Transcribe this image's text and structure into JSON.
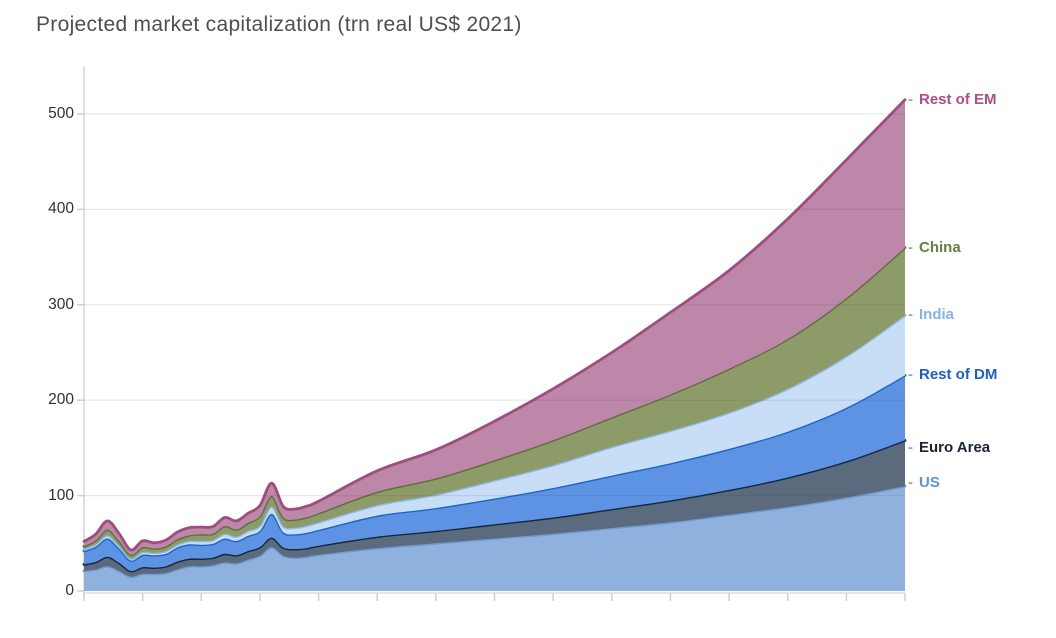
{
  "title": "Projected market capitalization (trn real US$ 2021)",
  "chart_data": {
    "type": "area",
    "stacked": true,
    "title": "Projected market capitalization (trn real US$ 2021)",
    "unit": "trn real US$ 2021",
    "xlabel": "",
    "ylabel": "",
    "ylim": [
      0,
      500
    ],
    "yticks": [
      0,
      100,
      200,
      300,
      400,
      500
    ],
    "ytick_labels": [
      "0",
      "100",
      "200",
      "300",
      "400",
      "500"
    ],
    "grid": "horizontal",
    "x_range_years": [
      2005,
      2075
    ],
    "x_tick_every_years": 5,
    "x_tick_labels_visible": false,
    "legend_position": "right-edge-labels",
    "x": [
      2005,
      2006,
      2007,
      2008,
      2009,
      2010,
      2011,
      2012,
      2013,
      2014,
      2015,
      2016,
      2017,
      2018,
      2019,
      2020,
      2021,
      2022,
      2023,
      2024,
      2025,
      2030,
      2035,
      2040,
      2045,
      2050,
      2055,
      2060,
      2065,
      2070,
      2075
    ],
    "series": [
      {
        "name": "US",
        "label": "US",
        "fill": "#8fb1de",
        "stroke": "#6d9bd3",
        "label_color": "#5f92dc",
        "values": [
          21,
          22.5,
          26,
          21,
          15,
          18,
          18,
          19,
          23,
          26,
          26,
          27,
          30,
          29,
          33,
          37,
          46,
          37,
          35,
          36,
          38,
          45,
          50,
          55,
          60,
          66,
          72,
          80,
          88,
          98,
          110
        ]
      },
      {
        "name": "Euro Area",
        "label": "Euro Area",
        "fill": "#5b6a7d",
        "stroke": "#16273c",
        "label_color": "#17233a",
        "values": [
          7,
          8,
          10,
          8.5,
          6,
          7,
          6.5,
          7,
          8,
          8,
          8,
          8,
          9,
          8.5,
          9,
          9,
          10,
          8.5,
          9,
          9,
          9.5,
          12,
          13,
          15,
          17,
          20,
          23,
          26,
          31,
          38,
          48
        ]
      },
      {
        "name": "Rest of DM",
        "label": "Rest of DM",
        "fill": "#5e92e2",
        "stroke": "#1a66cc",
        "label_color": "#1d5fc8",
        "values": [
          14,
          16,
          19,
          15,
          11,
          13,
          13,
          13,
          15,
          15,
          14.5,
          14.5,
          16,
          15,
          16,
          17,
          25,
          16,
          15.5,
          16,
          16.5,
          22,
          24,
          27,
          31,
          35,
          39,
          43,
          48,
          56,
          68
        ]
      },
      {
        "name": "India",
        "label": "India",
        "fill": "#c8def7",
        "stroke": "#8fb9ec",
        "label_color": "#85b2ea",
        "values": [
          2,
          2.5,
          3.5,
          3,
          2,
          3,
          2.5,
          3,
          3,
          3.5,
          4,
          4,
          5,
          4.5,
          5,
          5.5,
          7.5,
          6.5,
          7,
          7.5,
          8,
          11,
          14,
          19,
          24,
          30,
          34,
          38,
          45,
          54,
          63
        ]
      },
      {
        "name": "China",
        "label": "China",
        "fill": "#8d9b68",
        "stroke": "#5d7038",
        "label_color": "#66803f",
        "values": [
          3,
          4,
          6,
          5,
          4,
          5,
          4.5,
          5,
          5.5,
          6,
          7,
          6.5,
          8,
          7.5,
          8.5,
          10,
          11,
          9,
          8.5,
          9,
          9.5,
          14,
          17,
          21,
          26,
          31,
          38,
          46,
          52,
          61,
          71
        ]
      },
      {
        "name": "Rest of EM",
        "label": "Rest of EM",
        "fill": "#bd87a9",
        "stroke": "#9f4d7d",
        "label_color": "#ab4f86",
        "values": [
          5,
          6.5,
          9,
          7.5,
          5,
          6.5,
          6,
          6.5,
          7.5,
          8,
          7.5,
          7.5,
          9,
          9,
          10,
          11,
          13.5,
          11.5,
          11,
          11.5,
          12.5,
          22,
          30,
          41,
          54,
          68,
          86,
          103,
          126,
          145,
          155
        ]
      }
    ]
  },
  "style_colors": {
    "title_text": "#4f4f4f",
    "axis_line": "#d6d6d6",
    "tick_mark": "#cfcfcf",
    "gridline": "#e2e2e2",
    "ytick_text": "#303030",
    "label_dash": "#a3a3a3",
    "background": "#ffffff"
  }
}
